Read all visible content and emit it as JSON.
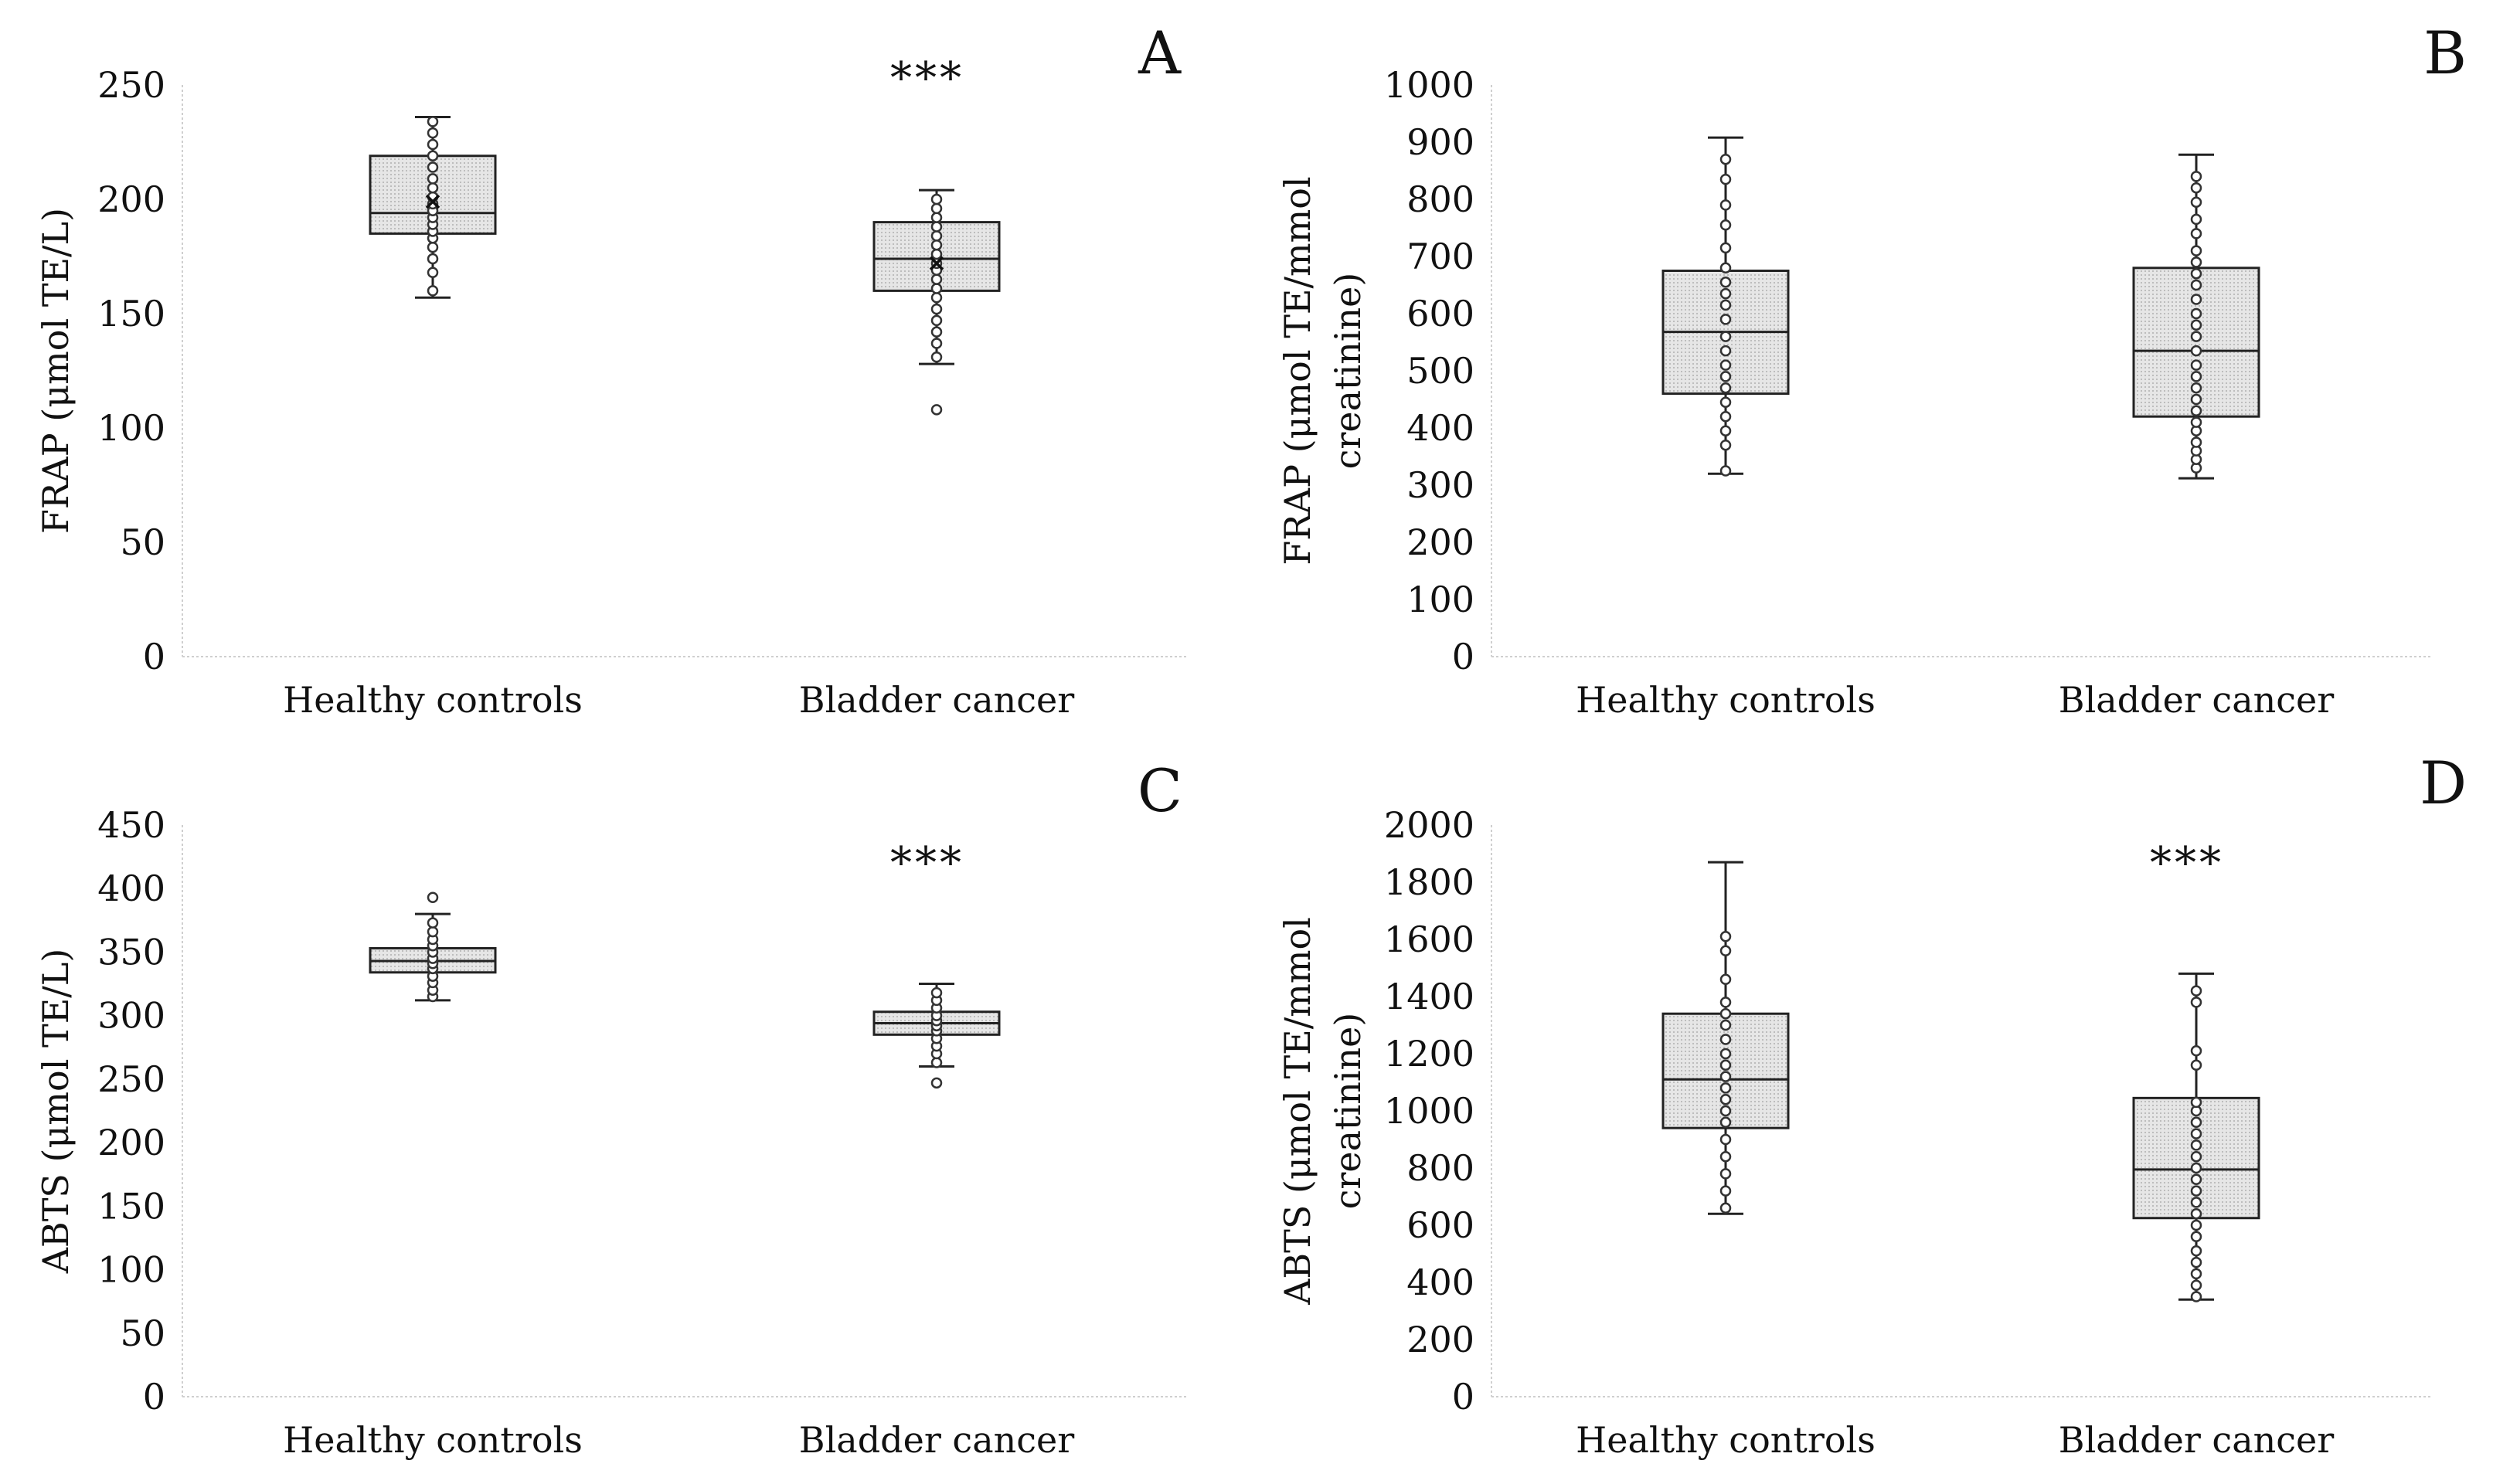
{
  "chart_data": [
    {
      "panel_label": "A",
      "type": "box",
      "categories": [
        "Healthy controls",
        "Bladder cancer"
      ],
      "ylabel_lines": [
        "FRAP (μmol TE/L)"
      ],
      "ylim": [
        0,
        250
      ],
      "yticks": [
        0,
        50,
        100,
        150,
        200,
        250
      ],
      "significance": {
        "Bladder cancer": "***"
      },
      "boxes": [
        {
          "category": "Healthy controls",
          "whisker_low": 157,
          "q1": 185,
          "median": 194,
          "mean": 199,
          "q3": 219,
          "whisker_high": 236,
          "points": [
            160,
            168,
            174,
            179,
            183,
            186,
            189,
            192,
            195,
            198,
            201,
            205,
            209,
            214,
            219,
            224,
            229,
            234
          ],
          "outliers": []
        },
        {
          "category": "Bladder cancer",
          "whisker_low": 128,
          "q1": 160,
          "median": 174,
          "mean": 172,
          "q3": 190,
          "whisker_high": 204,
          "points": [
            131,
            137,
            142,
            147,
            152,
            157,
            161,
            165,
            169,
            172,
            176,
            180,
            184,
            188,
            192,
            196,
            200
          ],
          "outliers": [
            108
          ]
        }
      ]
    },
    {
      "panel_label": "B",
      "type": "box",
      "categories": [
        "Healthy controls",
        "Bladder cancer"
      ],
      "ylabel_lines": [
        "FRAP (μmol TE/mmol",
        "creatinine)"
      ],
      "ylim": [
        0,
        1000
      ],
      "yticks": [
        0,
        100,
        200,
        300,
        400,
        500,
        600,
        700,
        800,
        900,
        1000
      ],
      "significance": {},
      "boxes": [
        {
          "category": "Healthy controls",
          "whisker_low": 320,
          "q1": 460,
          "median": 568,
          "q3": 675,
          "whisker_high": 908,
          "points": [
            325,
            370,
            395,
            420,
            445,
            470,
            490,
            510,
            535,
            560,
            590,
            615,
            635,
            655,
            680,
            715,
            755,
            790,
            835,
            870
          ],
          "outliers": []
        },
        {
          "category": "Bladder cancer",
          "whisker_low": 312,
          "q1": 420,
          "median": 535,
          "q3": 680,
          "whisker_high": 878,
          "points": [
            330,
            345,
            360,
            375,
            395,
            410,
            430,
            450,
            470,
            490,
            510,
            535,
            560,
            580,
            600,
            625,
            650,
            670,
            690,
            710,
            740,
            765,
            795,
            820,
            840
          ],
          "outliers": []
        }
      ]
    },
    {
      "panel_label": "C",
      "type": "box",
      "categories": [
        "Healthy controls",
        "Bladder cancer"
      ],
      "ylabel_lines": [
        "ABTS (μmol TE/L)"
      ],
      "ylim": [
        0,
        450
      ],
      "yticks": [
        0,
        50,
        100,
        150,
        200,
        250,
        300,
        350,
        400,
        450
      ],
      "significance": {
        "Bladder cancer": "***"
      },
      "boxes": [
        {
          "category": "Healthy controls",
          "whisker_low": 312,
          "q1": 334,
          "median": 343,
          "q3": 353,
          "whisker_high": 380,
          "points": [
            315,
            320,
            326,
            331,
            337,
            341,
            345,
            350,
            355,
            360,
            366,
            373
          ],
          "outliers": [
            393
          ]
        },
        {
          "category": "Bladder cancer",
          "whisker_low": 260,
          "q1": 285,
          "median": 294,
          "q3": 303,
          "whisker_high": 325,
          "points": [
            263,
            270,
            276,
            282,
            288,
            292,
            296,
            300,
            306,
            312,
            318
          ],
          "outliers": [
            247
          ]
        }
      ]
    },
    {
      "panel_label": "D",
      "type": "box",
      "categories": [
        "Healthy controls",
        "Bladder cancer"
      ],
      "ylabel_lines": [
        "ABTS (μmol TE/mmol",
        "creatinine)"
      ],
      "ylim": [
        0,
        2000
      ],
      "yticks": [
        0,
        200,
        400,
        600,
        800,
        1000,
        1200,
        1400,
        1600,
        1800,
        2000
      ],
      "significance": {
        "Bladder cancer": "***"
      },
      "boxes": [
        {
          "category": "Healthy controls",
          "whisker_low": 640,
          "q1": 940,
          "median": 1110,
          "q3": 1340,
          "whisker_high": 1870,
          "points": [
            660,
            720,
            780,
            840,
            900,
            960,
            1000,
            1040,
            1080,
            1120,
            1160,
            1200,
            1250,
            1300,
            1340,
            1380,
            1460,
            1560,
            1610
          ],
          "outliers": []
        },
        {
          "category": "Bladder cancer",
          "whisker_low": 340,
          "q1": 625,
          "median": 795,
          "q3": 1045,
          "whisker_high": 1480,
          "points": [
            350,
            390,
            430,
            470,
            510,
            560,
            600,
            640,
            680,
            720,
            760,
            800,
            840,
            880,
            920,
            960,
            1000,
            1030,
            1160,
            1210,
            1380,
            1420
          ],
          "outliers": []
        }
      ]
    }
  ]
}
